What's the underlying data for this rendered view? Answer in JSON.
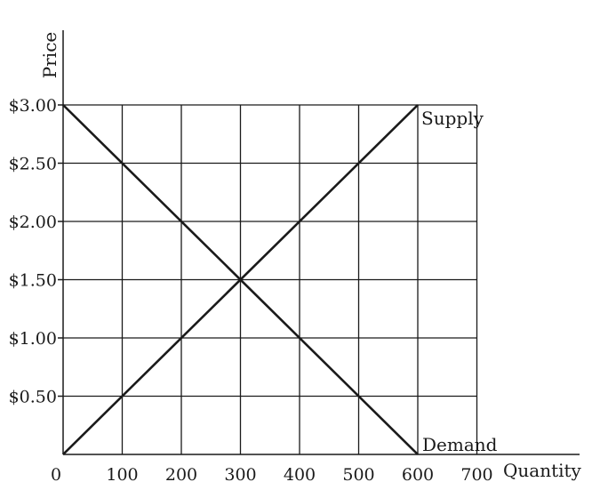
{
  "chart_data": {
    "type": "line",
    "xlabel": "Quantity",
    "ylabel": "Price",
    "x_ticks": [
      0,
      100,
      200,
      300,
      400,
      500,
      600,
      700
    ],
    "x_tick_labels": [
      "0",
      "100",
      "200",
      "300",
      "400",
      "500",
      "600",
      "700"
    ],
    "y_ticks": [
      0.5,
      1.0,
      1.5,
      2.0,
      2.5,
      3.0
    ],
    "y_tick_labels": [
      "$0.50",
      "$1.00",
      "$1.50",
      "$2.00",
      "$2.50",
      "$3.00"
    ],
    "xlim": [
      0,
      700
    ],
    "ylim": [
      0,
      3.0
    ],
    "grid": true,
    "series": [
      {
        "name": "Supply",
        "x": [
          0,
          600
        ],
        "y": [
          0,
          3.0
        ]
      },
      {
        "name": "Demand",
        "x": [
          0,
          600
        ],
        "y": [
          3.0,
          0
        ]
      }
    ]
  }
}
